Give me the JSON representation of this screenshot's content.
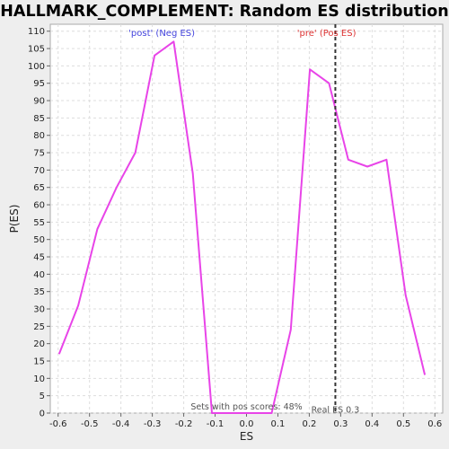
{
  "chart_data": {
    "type": "line",
    "title": "HALLMARK_COMPLEMENT: Random ES distribution",
    "xlabel": "ES",
    "ylabel": "P(ES)",
    "xlim": [
      -0.625,
      0.625
    ],
    "ylim": [
      0,
      112
    ],
    "x_ticks": [
      -0.6,
      -0.5,
      -0.4,
      -0.3,
      -0.2,
      -0.1,
      0.0,
      0.1,
      0.2,
      0.3,
      0.4,
      0.5,
      0.6
    ],
    "x_tick_labels": [
      "-0.6",
      "-0.5",
      "-0.4",
      "-0.3",
      "-0.2",
      "-0.1",
      "0.0",
      "0.1",
      "0.2",
      "0.3",
      "0.4",
      "0.5",
      "0.6"
    ],
    "y_ticks": [
      0,
      5,
      10,
      15,
      20,
      25,
      30,
      35,
      40,
      45,
      50,
      55,
      60,
      65,
      70,
      75,
      80,
      85,
      90,
      95,
      100,
      105,
      110
    ],
    "grid": true,
    "series": [
      {
        "color": "#e844e8",
        "x": [
          -0.597,
          -0.536,
          -0.475,
          -0.414,
          -0.354,
          -0.293,
          -0.232,
          -0.171,
          -0.11,
          -0.049,
          0.012,
          0.08,
          0.141,
          0.202,
          0.263,
          0.324,
          0.385,
          0.446,
          0.507,
          0.568
        ],
        "y": [
          17,
          31,
          53,
          65,
          75,
          103,
          107,
          69,
          0,
          0,
          0,
          0,
          24,
          99,
          95,
          73,
          71,
          73,
          34,
          11
        ]
      }
    ],
    "real_es": {
      "x": 0.283,
      "label": "Real ES 0.3",
      "color": "#333333"
    },
    "annotations": {
      "post": {
        "text": "'post' (Neg ES)",
        "color": "#4444dd"
      },
      "pre": {
        "text": "'pre' (Pos ES)",
        "color": "#dd3333"
      },
      "pos_scores": {
        "text": "Sets with pos scores: 48%"
      }
    }
  }
}
